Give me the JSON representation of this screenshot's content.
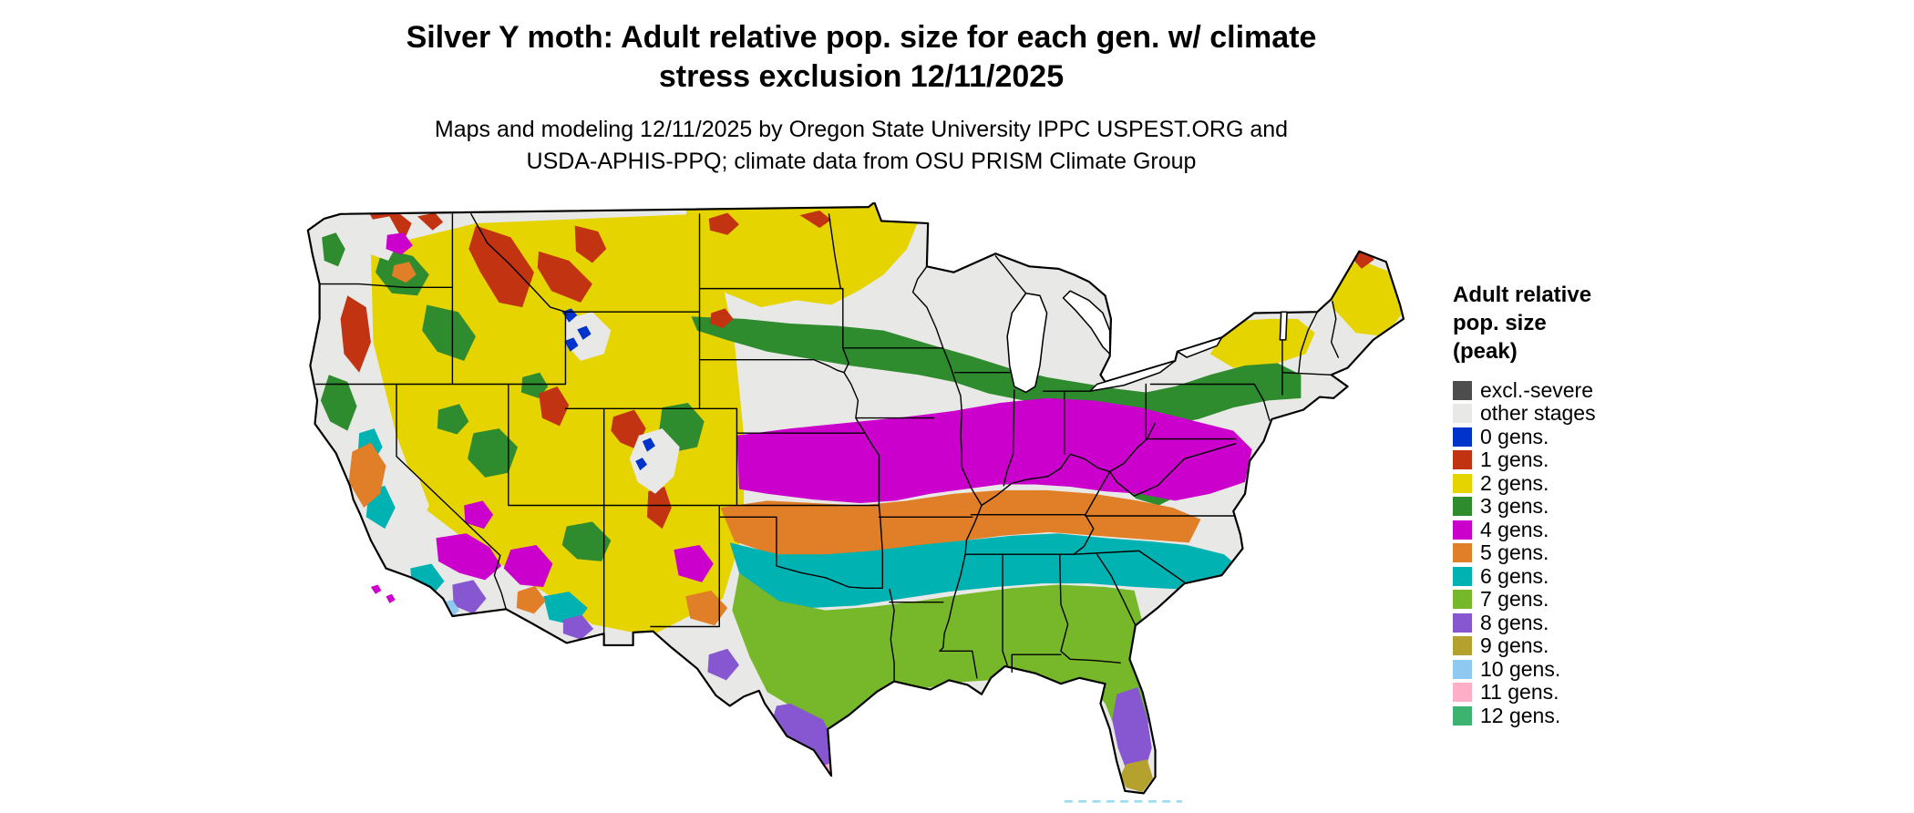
{
  "title": {
    "line1": "Silver Y moth: Adult relative pop. size for each gen. w/ climate",
    "line2": "stress exclusion 12/11/2025"
  },
  "subtitle": {
    "line1": "Maps and modeling 12/11/2025 by Oregon State University IPPC USPEST.ORG and",
    "line2": "USDA-APHIS-PPQ; climate data from OSU PRISM Climate Group"
  },
  "legend": {
    "title_lines": [
      "Adult relative",
      "pop. size",
      "(peak)"
    ],
    "items": [
      {
        "key": "excl",
        "label": "excl.-severe",
        "color": "#4d4d4d"
      },
      {
        "key": "other",
        "label": "other stages",
        "color": "#e8e8e6"
      },
      {
        "key": "0",
        "label": "0 gens.",
        "color": "#0033cc"
      },
      {
        "key": "1",
        "label": "1 gens.",
        "color": "#c23312"
      },
      {
        "key": "2",
        "label": "2 gens.",
        "color": "#e6d400"
      },
      {
        "key": "3",
        "label": "3 gens.",
        "color": "#2e8b2e"
      },
      {
        "key": "4",
        "label": "4 gens.",
        "color": "#cc00cc"
      },
      {
        "key": "5",
        "label": "5 gens.",
        "color": "#e07f28"
      },
      {
        "key": "6",
        "label": "6 gens.",
        "color": "#00b2b2"
      },
      {
        "key": "7",
        "label": "7 gens.",
        "color": "#76b82a"
      },
      {
        "key": "8",
        "label": "8 gens.",
        "color": "#8657d0"
      },
      {
        "key": "9",
        "label": "9 gens.",
        "color": "#b5a22e"
      },
      {
        "key": "10",
        "label": "10 gens.",
        "color": "#8fc8f0"
      },
      {
        "key": "11",
        "label": "11 gens.",
        "color": "#ffaec8"
      },
      {
        "key": "12",
        "label": "12 gens.",
        "color": "#3cb371"
      }
    ]
  },
  "map": {
    "region": "Continental United States",
    "kind": "raster choropleth of adult generations per year",
    "zones_north_to_south": [
      "2 gens. across northern plains (MT, ND, MN) and northern New England",
      "3 gens. band across SD, NE, IA, southern Great Lakes, PA, NY",
      "4 gens. band across KS, MO, Ohio Valley, KY, VA",
      "5 gens. band across OK, AR, TN",
      "6 gens. band across north TX, MS, AL, GA, coastal Carolinas",
      "7 gens. across central TX, Gulf Coast, north FL",
      "8 gens. in south TX and central FL",
      "9 gens. at southern tip of FL",
      "mixed 0-8 gens. mottle with excluded/other-stage areas across the mountain West"
    ]
  }
}
